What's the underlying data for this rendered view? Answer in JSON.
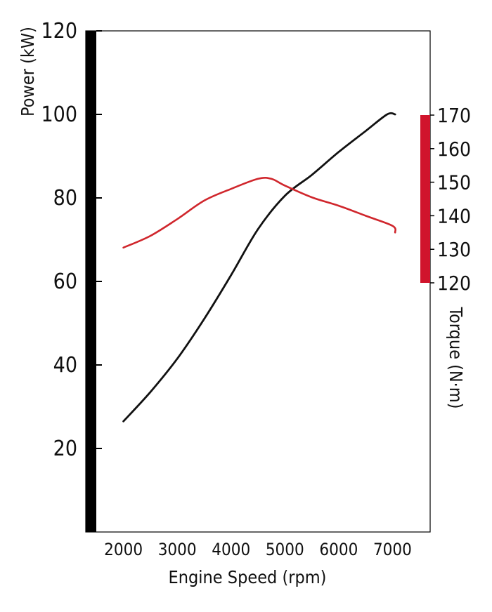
{
  "chart_data": {
    "type": "line",
    "xlabel": "Engine Speed (rpm)",
    "ylabel": "Power (kW)",
    "y2label": "Torque (N·m)",
    "xlim": [
      1300,
      7700
    ],
    "ylim": [
      0,
      120
    ],
    "y2lim": [
      120,
      170
    ],
    "x_ticks": [
      "2000",
      "3000",
      "4000",
      "5000",
      "6000",
      "7000"
    ],
    "y_ticks": [
      "20",
      "40",
      "60",
      "80",
      "100",
      "120"
    ],
    "y2_ticks": [
      "120",
      "130",
      "140",
      "150",
      "160",
      "170"
    ],
    "grid": false,
    "series": [
      {
        "axis": "left",
        "color": "#111111",
        "x": [
          2000,
          2500,
          3000,
          3500,
          4000,
          4500,
          5000,
          5500,
          6000,
          6500,
          6900,
          7050
        ],
        "values": [
          26.5,
          33.5,
          41.5,
          51,
          61.5,
          72.5,
          80.5,
          85.5,
          91,
          96,
          100,
          100
        ]
      },
      {
        "axis": "right",
        "color": "#d0262c",
        "x": [
          2000,
          2500,
          3000,
          3500,
          4000,
          4500,
          4750,
          5000,
          5500,
          6000,
          6500,
          7000,
          7050
        ],
        "values": [
          130.5,
          134,
          139,
          144.5,
          148,
          151,
          151,
          149,
          145.5,
          143,
          140,
          137,
          135
        ]
      }
    ],
    "colors": {
      "left_axis_bar": "#000000",
      "right_axis_bar": "#d0142c"
    }
  }
}
